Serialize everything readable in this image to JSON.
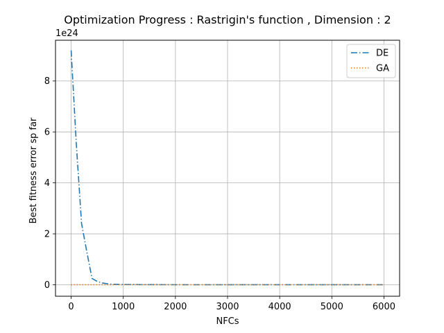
{
  "chart_data": {
    "type": "line",
    "title": "Optimization Progress : Rastrigin's function , Dimension : 2",
    "xlabel": "NFCs",
    "ylabel": "Best fitness error sp far",
    "y_offset_label": "1e24",
    "xlim": [
      -300,
      6300
    ],
    "ylim": [
      -0.45,
      9.6
    ],
    "y_scale_exponent": 24,
    "xticks": [
      0,
      1000,
      2000,
      3000,
      4000,
      5000,
      6000
    ],
    "xtick_labels": [
      "0",
      "1000",
      "2000",
      "3000",
      "4000",
      "5000",
      "6000"
    ],
    "yticks": [
      0,
      2,
      4,
      6,
      8
    ],
    "ytick_labels": [
      "0",
      "2",
      "4",
      "6",
      "8"
    ],
    "grid": true,
    "legend_position": "top-right",
    "series": [
      {
        "name": "DE",
        "color": "#1f77b4",
        "linestyle": "dashdot",
        "x": [
          0,
          100,
          200,
          300,
          400,
          500,
          600,
          700,
          800,
          1000,
          1500,
          2000,
          3000,
          4000,
          5000,
          6000
        ],
        "y": [
          9.2,
          5.5,
          2.4,
          1.3,
          0.25,
          0.13,
          0.07,
          0.04,
          0.02,
          0.01,
          0.004,
          0.002,
          0.001,
          0.0005,
          0.0002,
          0.0001
        ]
      },
      {
        "name": "GA",
        "color": "#ff7f0e",
        "linestyle": "dotted",
        "x": [
          0,
          1000,
          2000,
          3000,
          4000,
          5000,
          6000
        ],
        "y": [
          0,
          0,
          0,
          0,
          0,
          0,
          0
        ]
      }
    ]
  }
}
